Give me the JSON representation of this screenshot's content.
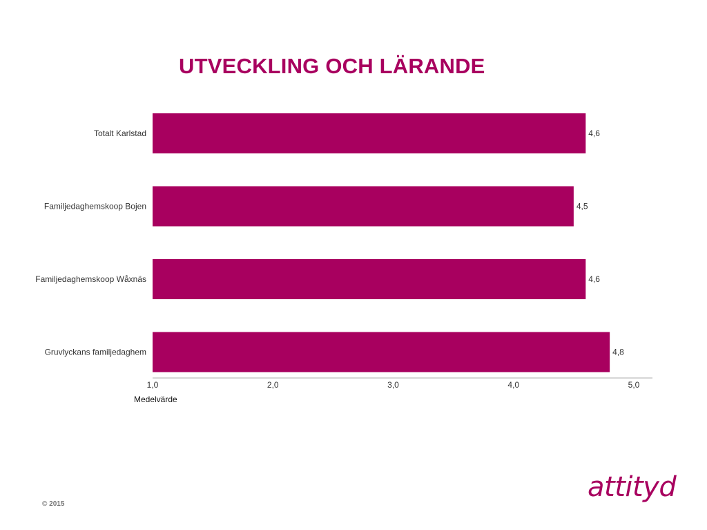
{
  "slide": {
    "title": "UTVECKLING OCH LÄRANDE",
    "copyright": "© 2015",
    "logo_text": "attityd"
  },
  "chart_data": {
    "type": "bar",
    "orientation": "horizontal",
    "title": "UTVECKLING OCH LÄRANDE",
    "categories": [
      "Totalt Karlstad",
      "Familjedaghemskoop Bojen",
      "Familjedaghemskoop Wåxnäs",
      "Gruvlyckans familjedaghem"
    ],
    "values": [
      4.6,
      4.5,
      4.6,
      4.8
    ],
    "value_labels": [
      "4,6",
      "4,5",
      "4,6",
      "4,8"
    ],
    "xlabel": "Medelvärde",
    "ylabel": "",
    "xlim": [
      1.0,
      5.0
    ],
    "ticks": [
      1.0,
      2.0,
      3.0,
      4.0,
      5.0
    ],
    "tick_labels": [
      "1,0",
      "2,0",
      "3,0",
      "4,0",
      "5,0"
    ],
    "grid": false,
    "legend": "none",
    "bar_color": "#a8005f",
    "axis_color": "#c8c8c8"
  }
}
